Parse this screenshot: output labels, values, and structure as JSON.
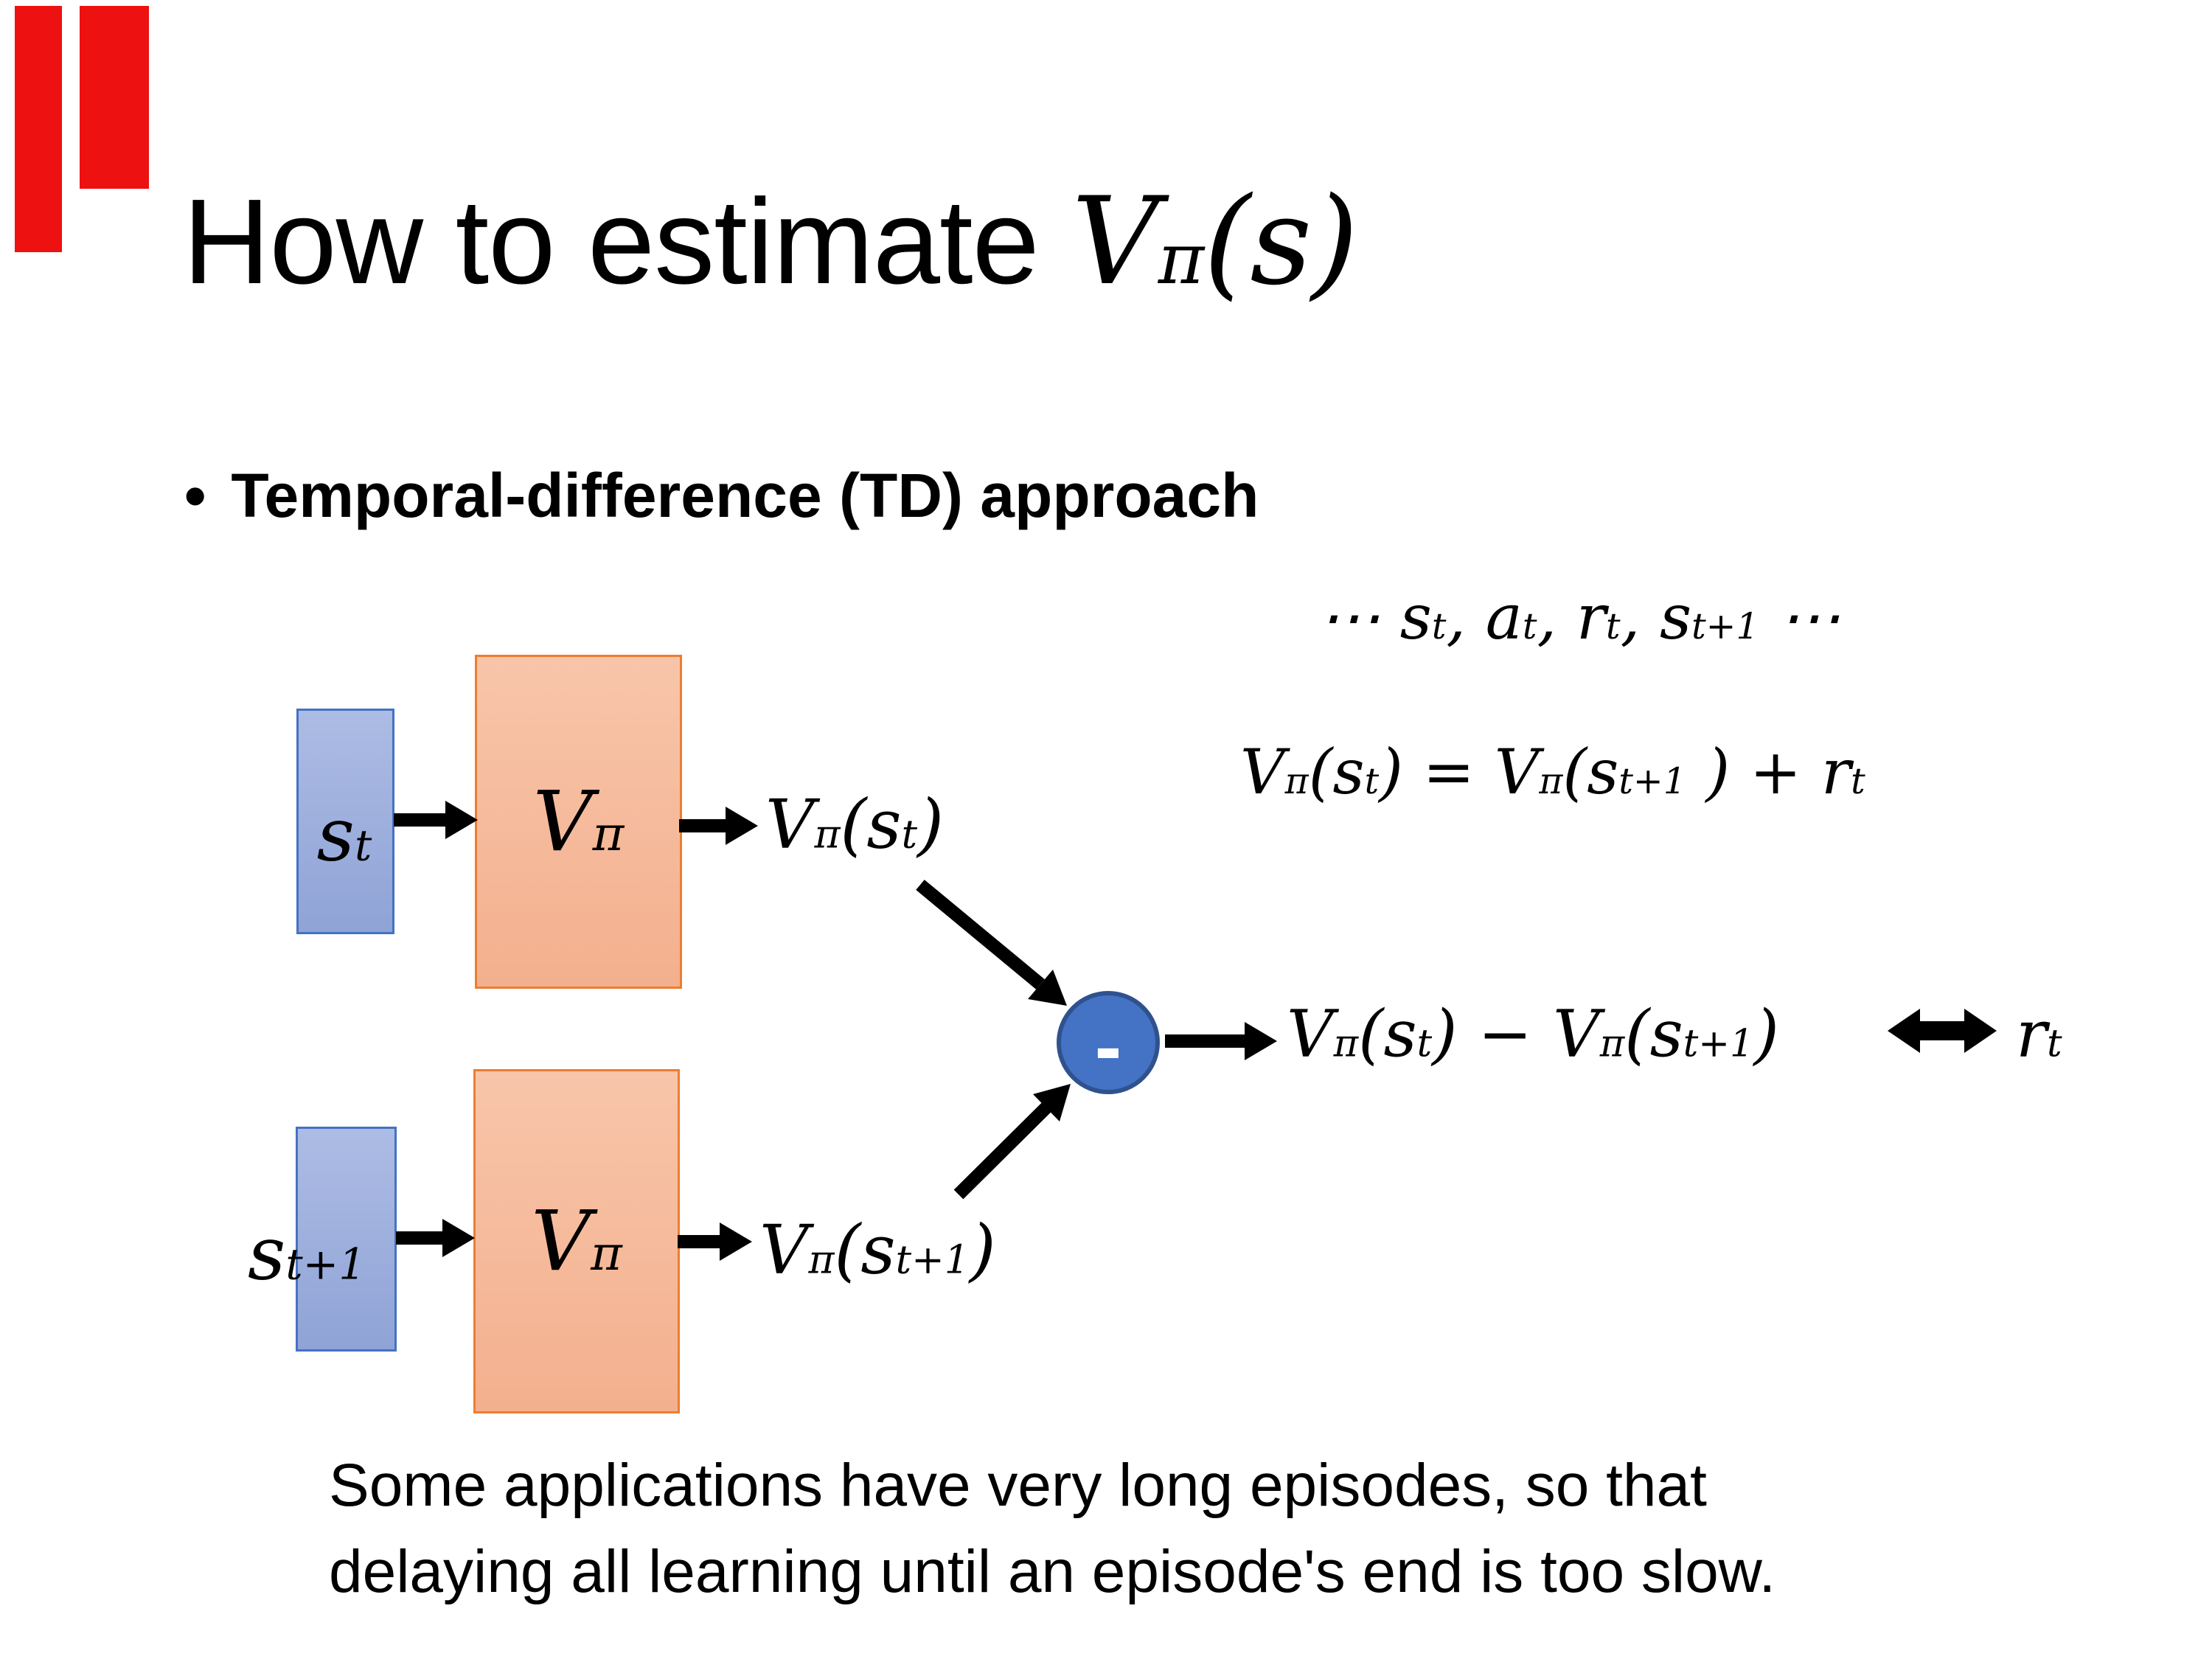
{
  "title": {
    "text": "How to estimate ",
    "math_html": "V<sup>π</sup>(s)"
  },
  "bullet": {
    "marker": "•",
    "text": "Temporal-difference (TD) approach"
  },
  "equations": {
    "trajectory_html": "⋯ s<sub>t</sub>, a<sub>t</sub>, r<sub>t</sub>, s<sub>t+1</sub> ⋯",
    "td_html": "V<sup>π</sup>(s<sub>t</sub>) = V<sup>π</sup>(s<sub>t+1</sub> ) + r<sub>t</sub>"
  },
  "diagram": {
    "top_row": {
      "state_html": "s<sub>t</sub>",
      "net_html": "V<sup>π</sup>",
      "out_html": "V<sup>π</sup>(s<sub>t</sub>)"
    },
    "bottom_row": {
      "state_html": "s<sub>t+1</sub>",
      "net_html": "V<sup>π</sup>",
      "out_html": "V<sup>π</sup>(s<sub>t+1</sub>)"
    },
    "minus_node_label": "-",
    "result_html": "V<sup>π</sup>(s<sub>t</sub>) − V<sup>π</sup>(s<sub>t+1</sub>)",
    "reward_html": "r<sub>t</sub>"
  },
  "footnote": {
    "line1": "Some applications have very long episodes, so that",
    "line2": "delaying all learning until an episode's end is too slow."
  },
  "colors": {
    "ink": "#000000",
    "decor_red": "#ee1111",
    "state_fill_top": "#adbce4",
    "state_fill_bottom": "#8fa3d6",
    "state_border": "#4472c4",
    "net_fill_top": "#f8c5aa",
    "net_fill_bottom": "#f3b08e",
    "net_border": "#ed7d31",
    "node_fill": "#4472c4",
    "node_border": "#2f528f",
    "minus": "#ffffff"
  }
}
